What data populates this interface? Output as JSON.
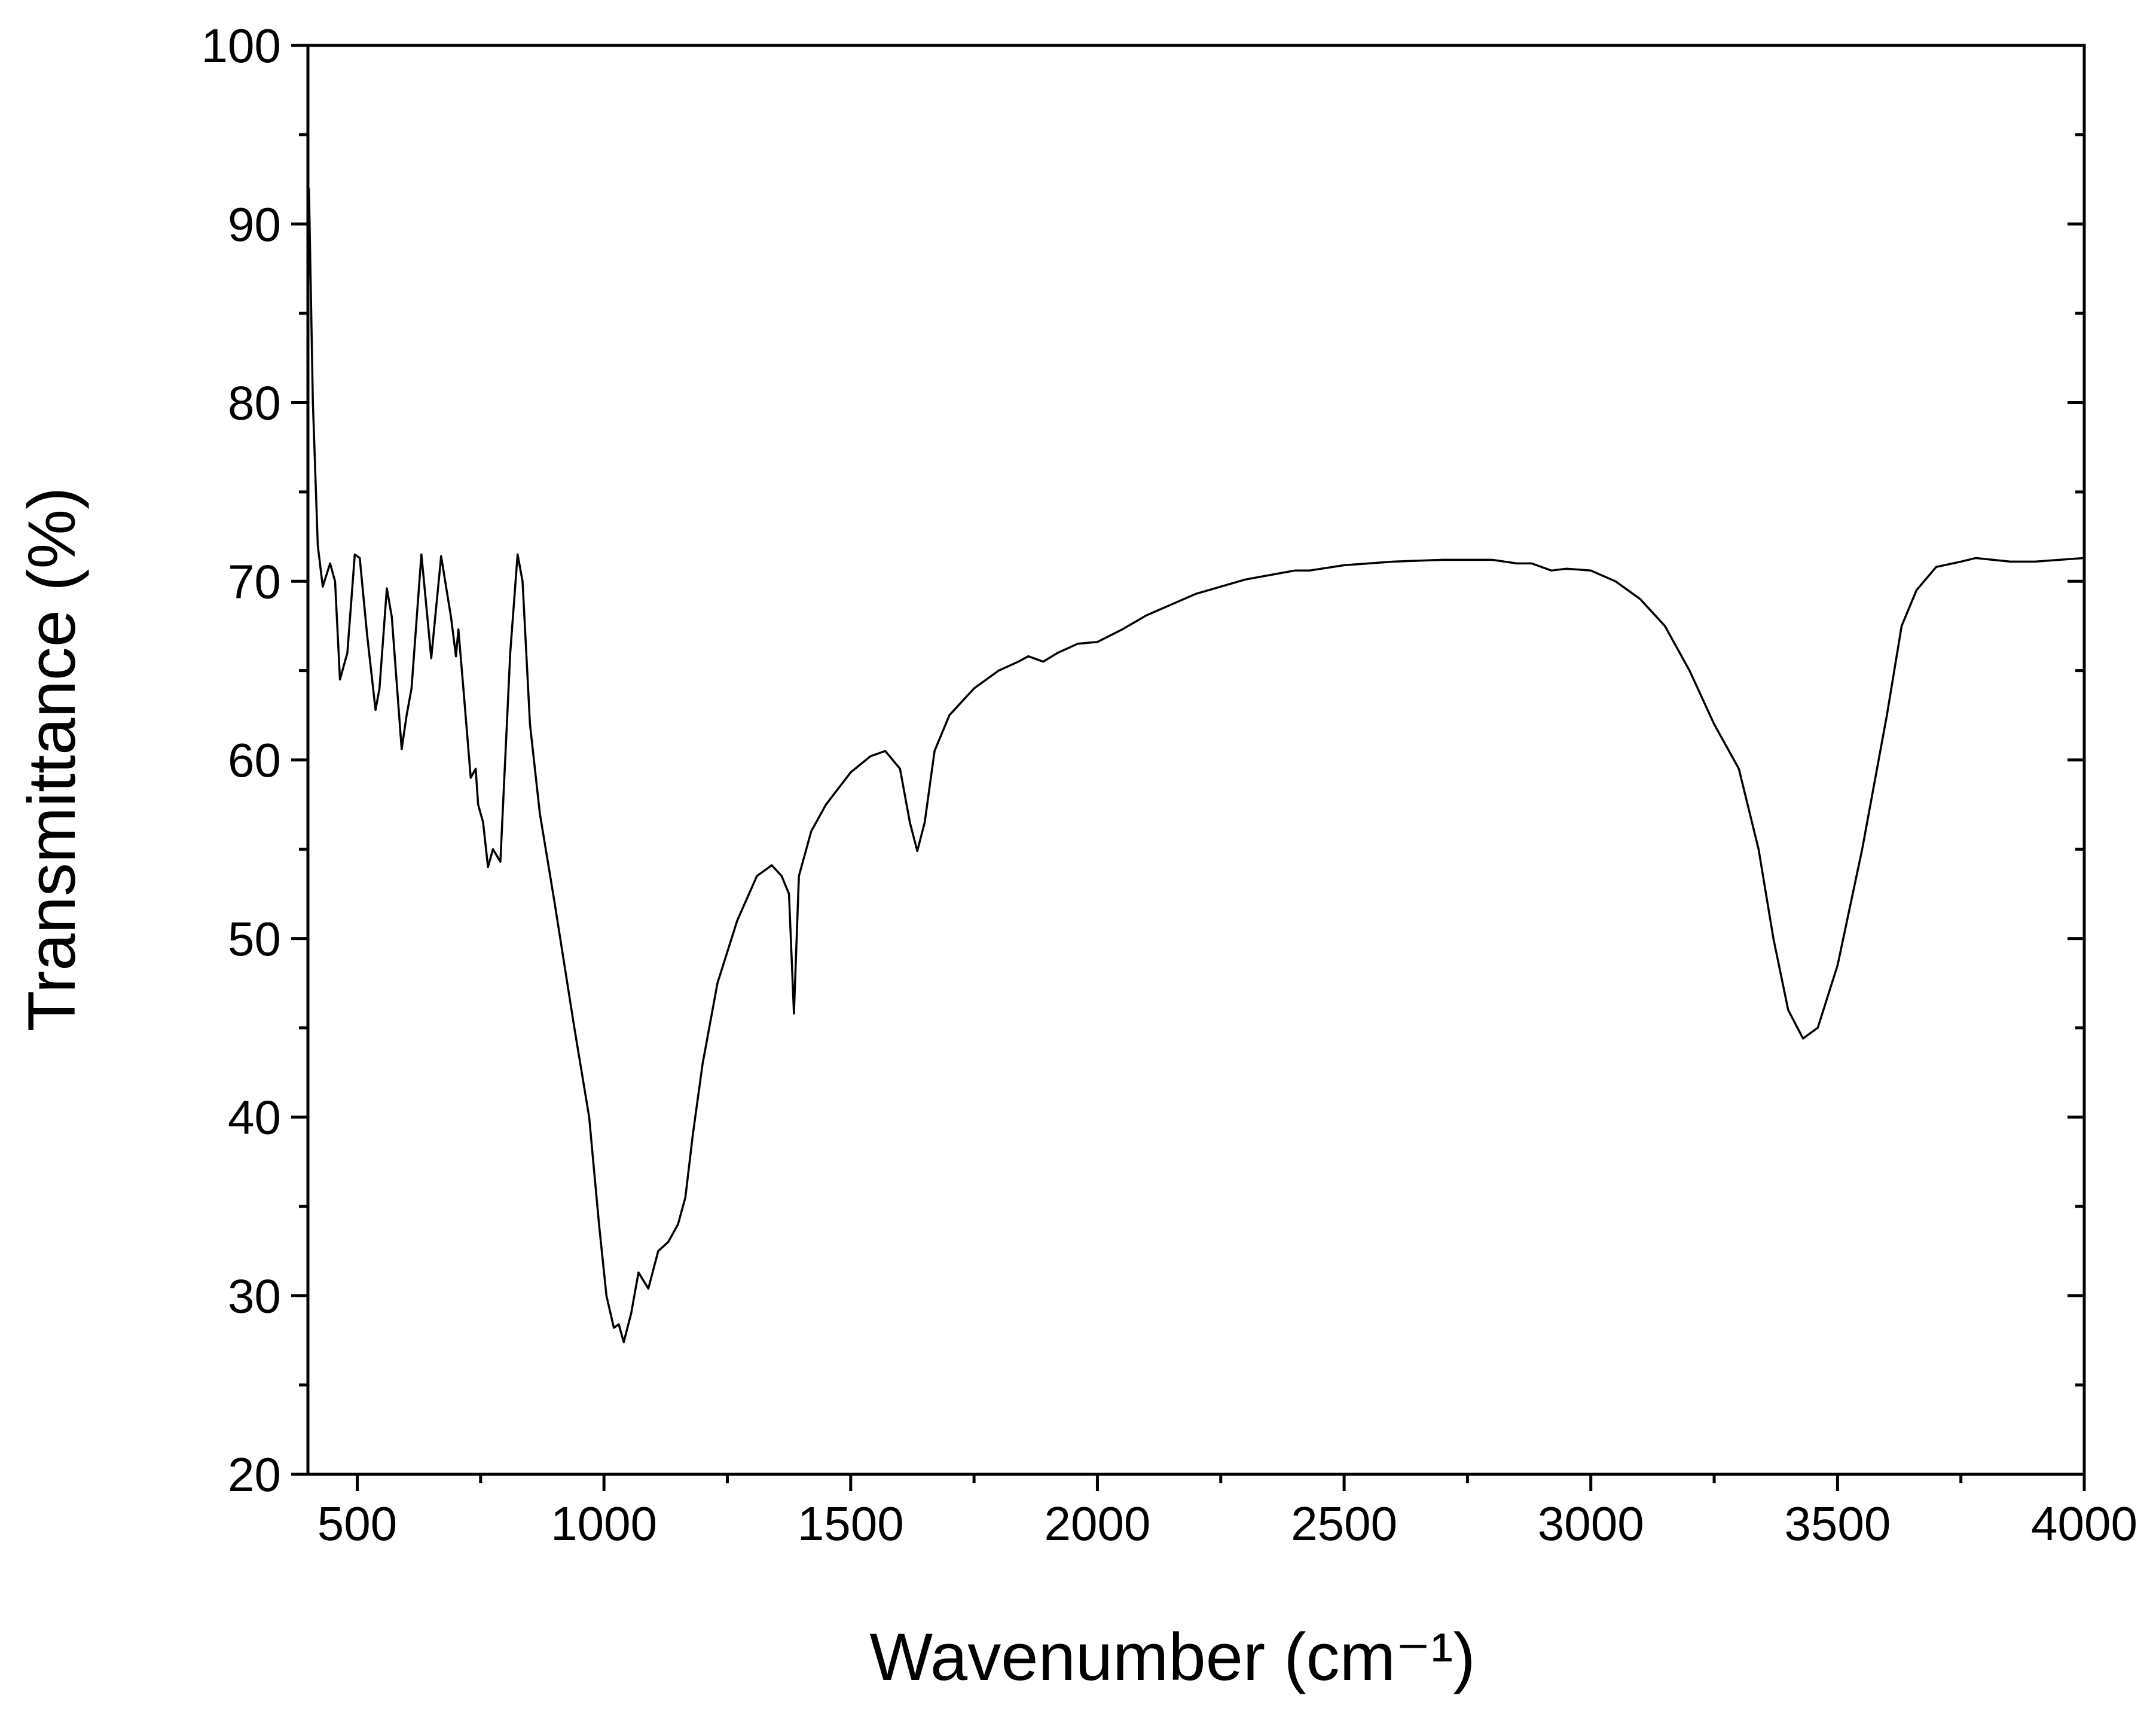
{
  "chart_data": {
    "type": "line",
    "x_label": "Wavenumber (cm⁻¹)",
    "y_label": "Transmittance (%)",
    "xlim": [
      400,
      4000
    ],
    "ylim": [
      20,
      100
    ],
    "xticks": [
      500,
      1000,
      1500,
      2000,
      2500,
      3000,
      3500,
      4000
    ],
    "yticks": [
      20,
      30,
      40,
      50,
      60,
      70,
      80,
      90,
      100
    ],
    "grid": false,
    "series": [
      {
        "color": "#000000",
        "x": [
          402,
          410,
          420,
          430,
          445,
          455,
          465,
          480,
          495,
          505,
          520,
          537,
          545,
          560,
          570,
          590,
          600,
          610,
          630,
          650,
          670,
          690,
          700,
          705,
          715,
          730,
          740,
          745,
          755,
          765,
          775,
          790,
          810,
          825,
          835,
          850,
          870,
          900,
          940,
          970,
          990,
          1005,
          1020,
          1030,
          1040,
          1055,
          1070,
          1090,
          1110,
          1130,
          1150,
          1165,
          1180,
          1200,
          1230,
          1270,
          1310,
          1340,
          1360,
          1375,
          1385,
          1395,
          1420,
          1450,
          1500,
          1540,
          1570,
          1600,
          1620,
          1635,
          1650,
          1670,
          1700,
          1750,
          1800,
          1840,
          1860,
          1890,
          1920,
          1960,
          2000,
          2050,
          2100,
          2200,
          2300,
          2400,
          2430,
          2500,
          2600,
          2700,
          2800,
          2850,
          2880,
          2920,
          2950,
          3000,
          3050,
          3100,
          3150,
          3200,
          3250,
          3300,
          3340,
          3370,
          3400,
          3430,
          3460,
          3500,
          3550,
          3600,
          3630,
          3660,
          3700,
          3750,
          3780,
          3850,
          3900,
          4000
        ],
        "values": [
          92,
          80,
          72,
          69.7,
          71,
          70,
          64.5,
          66,
          71.5,
          71.3,
          67,
          62.8,
          64,
          69.6,
          68,
          60.6,
          62.5,
          64,
          71.5,
          65.7,
          71.4,
          68,
          65.8,
          67.3,
          64,
          59,
          59.5,
          57.5,
          56.5,
          54,
          55,
          54.3,
          66,
          71.5,
          70,
          62,
          57,
          52,
          45,
          40,
          34,
          30,
          28.2,
          28.4,
          27.4,
          29,
          31.3,
          30.4,
          32.5,
          33,
          34,
          35.5,
          39,
          43,
          47.5,
          51,
          53.5,
          54.1,
          53.5,
          52.5,
          45.8,
          53.5,
          56,
          57.5,
          59.3,
          60.2,
          60.5,
          59.5,
          56.5,
          54.9,
          56.5,
          60.5,
          62.5,
          64,
          65,
          65.5,
          65.8,
          65.5,
          66,
          66.5,
          66.6,
          67.3,
          68.1,
          69.3,
          70.1,
          70.6,
          70.6,
          70.9,
          71.1,
          71.2,
          71.2,
          71,
          71,
          70.6,
          70.7,
          70.6,
          70,
          69,
          67.5,
          65,
          62,
          59.5,
          55,
          50,
          46,
          44.4,
          45,
          48.5,
          55,
          62.5,
          67.5,
          69.5,
          70.8,
          71.1,
          71.3,
          71.1,
          71.1,
          71.3
        ]
      }
    ]
  }
}
